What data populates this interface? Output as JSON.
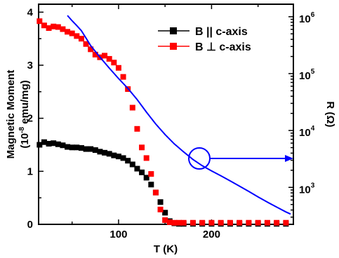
{
  "chart_data": {
    "type": "scatter",
    "xlabel": "T (K)",
    "ylabel_left_line1": "Magnetic Moment",
    "ylabel_left_line2_pre": "(10",
    "ylabel_left_line2_sup": "-8",
    "ylabel_left_line2_post": " emu/mg)",
    "ylabel_right": "R (Ω)",
    "xlim": [
      14,
      288
    ],
    "ylim_left": [
      0,
      4.15
    ],
    "ylim_right_log10": [
      2.35,
      6.22
    ],
    "yscale_right": "log",
    "grid": false,
    "legend_position": "top-right",
    "x_ticks": [
      100,
      200
    ],
    "y_ticks_left": [
      0,
      1,
      2,
      3,
      4
    ],
    "y_ticks_right": [
      {
        "value": 1000,
        "mantissa": "10",
        "exp": "3"
      },
      {
        "value": 10000,
        "mantissa": "10",
        "exp": "4"
      },
      {
        "value": 100000,
        "mantissa": "10",
        "exp": "5"
      },
      {
        "value": 1000000,
        "mantissa": "10",
        "exp": "6"
      }
    ],
    "series": [
      {
        "name": "B || c-axis",
        "color": "#000000",
        "marker": "square",
        "axis": "left",
        "x": [
          15,
          20,
          25,
          30,
          35,
          40,
          45,
          50,
          55,
          60,
          65,
          70,
          75,
          80,
          85,
          90,
          95,
          100,
          105,
          110,
          115,
          120,
          125,
          130,
          135,
          140,
          145,
          150,
          155,
          160,
          165,
          170,
          180,
          190,
          200,
          210,
          220,
          230,
          240,
          250,
          260,
          270,
          280
        ],
        "y": [
          1.5,
          1.55,
          1.52,
          1.53,
          1.51,
          1.49,
          1.46,
          1.45,
          1.45,
          1.44,
          1.42,
          1.42,
          1.4,
          1.37,
          1.35,
          1.33,
          1.3,
          1.28,
          1.25,
          1.2,
          1.13,
          1.05,
          0.98,
          0.88,
          0.75,
          0.6,
          0.42,
          0.22,
          0.06,
          0.02,
          0.01,
          0.01,
          0.01,
          0.01,
          0.01,
          0.01,
          0.01,
          0.01,
          0.01,
          0.01,
          0.01,
          0.01,
          0.01
        ]
      },
      {
        "name": "B ⊥ c-axis",
        "color": "#ff0000",
        "marker": "square",
        "axis": "left",
        "x": [
          15,
          20,
          25,
          30,
          35,
          40,
          45,
          50,
          55,
          60,
          65,
          70,
          75,
          80,
          85,
          90,
          95,
          100,
          105,
          110,
          115,
          120,
          125,
          130,
          135,
          140,
          145,
          150,
          155,
          160,
          165,
          170,
          180,
          190,
          200,
          210,
          220,
          230,
          240,
          250,
          260,
          270,
          280
        ],
        "y": [
          3.83,
          3.75,
          3.7,
          3.73,
          3.72,
          3.68,
          3.63,
          3.6,
          3.55,
          3.5,
          3.4,
          3.3,
          3.2,
          3.15,
          3.18,
          3.12,
          3.05,
          2.95,
          2.78,
          2.55,
          2.2,
          1.8,
          1.45,
          1.25,
          0.95,
          0.6,
          0.28,
          0.08,
          0.04,
          0.03,
          0.03,
          0.03,
          0.03,
          0.03,
          0.03,
          0.03,
          0.03,
          0.03,
          0.03,
          0.03,
          0.03,
          0.03,
          0.03
        ]
      },
      {
        "name": "R",
        "color": "#0000ff",
        "marker": "line",
        "axis": "right",
        "x": [
          45,
          50,
          55,
          60,
          65,
          70,
          80,
          90,
          100,
          110,
          120,
          130,
          140,
          150,
          160,
          170,
          180,
          190,
          200,
          210,
          220,
          230,
          240,
          250,
          260,
          270,
          280,
          285
        ],
        "y": [
          1050000,
          850000,
          700000,
          570000,
          420000,
          310000,
          195000,
          125000,
          82000,
          55000,
          35000,
          21000,
          13000,
          8500,
          5800,
          4200,
          3100,
          2400,
          1950,
          1600,
          1300,
          1050,
          850,
          680,
          550,
          450,
          370,
          340
        ]
      }
    ],
    "annotation": {
      "type": "circle-arrow",
      "x": 183,
      "y_right": 3000,
      "points_to": "right-axis"
    }
  }
}
